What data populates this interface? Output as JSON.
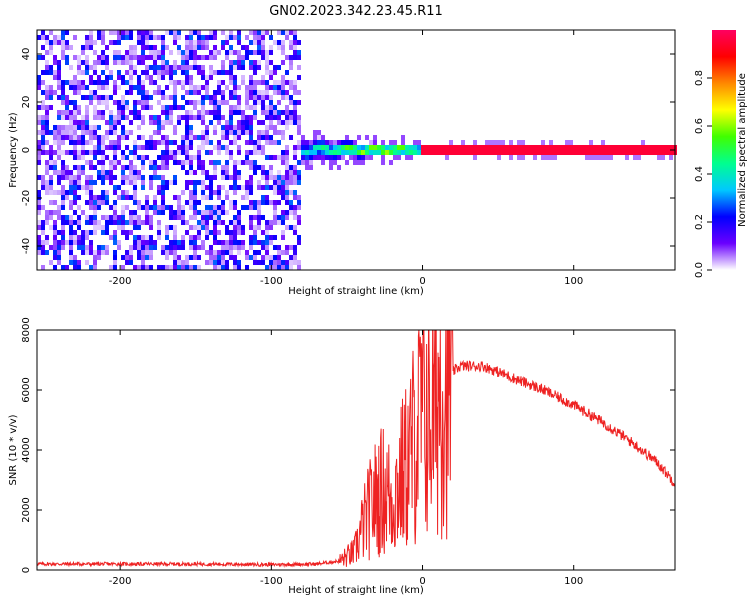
{
  "title": "GN02.2023.342.23.45.R11",
  "colors": {
    "snr_line": "#ee2222",
    "colormap": [
      "#ffffff",
      "#6a00ff",
      "#0000ff",
      "#00c8ff",
      "#00ff90",
      "#40ff00",
      "#ffff00",
      "#ff8800",
      "#ff0000",
      "#ff0060"
    ]
  },
  "chart_data": [
    {
      "type": "heatmap",
      "xlabel": "Height of straight line (km)",
      "ylabel": "Frequency (Hz)",
      "xlim": [
        -255,
        167
      ],
      "ylim": [
        -50,
        50
      ],
      "xticks": [
        -200,
        -100,
        0,
        100
      ],
      "yticks": [
        -40,
        -20,
        0,
        20,
        40
      ],
      "colorbar": {
        "label": "Normalized spectral amplitude",
        "range": [
          0,
          1
        ],
        "ticks": [
          "0.0",
          "0.2",
          "0.4",
          "0.6",
          "0.8"
        ],
        "tick_values": [
          0.0,
          0.2,
          0.4,
          0.6,
          0.8
        ]
      },
      "regions": [
        {
          "name": "noise",
          "x": [
            -255,
            -80
          ],
          "freq": [
            -50,
            50
          ],
          "amplitude": 0.15
        },
        {
          "name": "onset",
          "x": [
            -80,
            0
          ],
          "freq": [
            -4,
            4
          ],
          "amplitude": 0.5
        },
        {
          "name": "tone",
          "x": [
            0,
            167
          ],
          "freq": [
            -1,
            1
          ],
          "amplitude": 0.95
        }
      ],
      "grid": false
    },
    {
      "type": "line",
      "xlabel": "Height of straight line (km)",
      "ylabel": "SNR (10 * v/v)",
      "xlim": [
        -255,
        167
      ],
      "ylim": [
        0,
        8000
      ],
      "xticks": [
        -200,
        -100,
        0,
        100
      ],
      "yticks": [
        0,
        2000,
        4000,
        6000,
        8000
      ],
      "series": [
        {
          "x": [
            -255,
            -150,
            -100,
            -70,
            -55,
            -45,
            -40,
            -35,
            -30,
            -25,
            -20,
            -15,
            -10,
            -5,
            0,
            5,
            10,
            15,
            20,
            25,
            30,
            40,
            50,
            60,
            80,
            100,
            120,
            140,
            155,
            167
          ],
          "values": [
            200,
            200,
            180,
            200,
            300,
            600,
            1400,
            2000,
            2500,
            2700,
            2300,
            3000,
            3500,
            4400,
            5400,
            5200,
            6000,
            6500,
            6600,
            6800,
            6800,
            6800,
            6600,
            6400,
            6000,
            5500,
            4900,
            4200,
            3600,
            2900
          ]
        }
      ],
      "grid": false
    }
  ]
}
